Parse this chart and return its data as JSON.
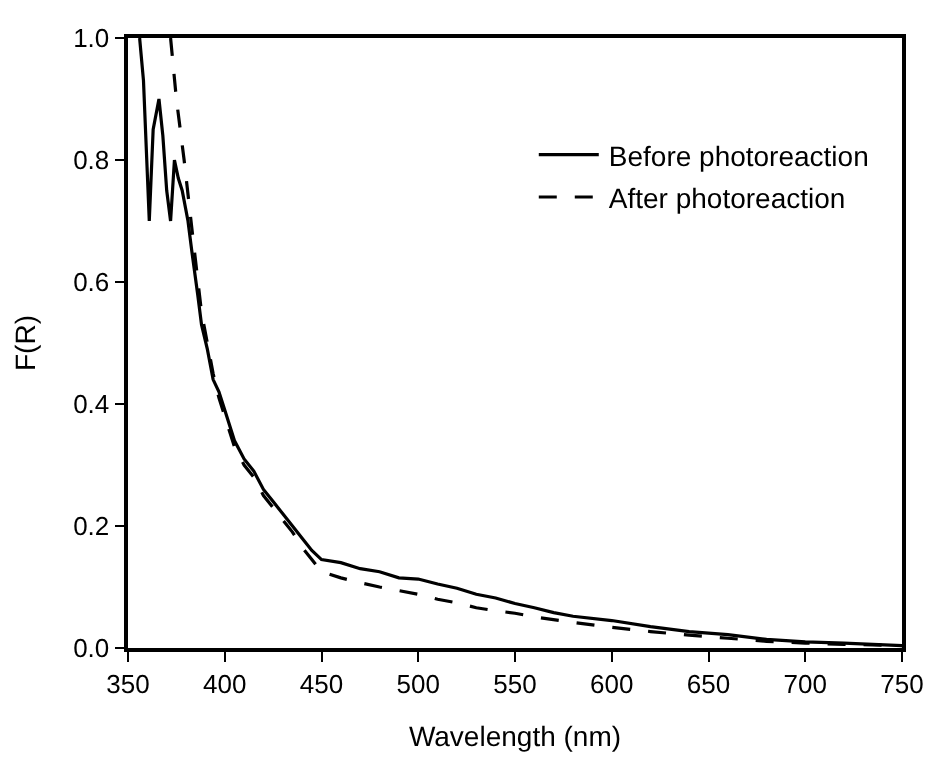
{
  "chart_data": {
    "type": "line",
    "xlabel": "Wavelength (nm)",
    "ylabel": "F(R)",
    "xlim": [
      350,
      750
    ],
    "xticks": [
      350,
      400,
      450,
      500,
      550,
      600,
      650,
      700,
      750
    ],
    "ylim": [
      0.0,
      1.0
    ],
    "yticks": [
      {
        "value": 0,
        "label": "0.0"
      },
      0.2,
      0.4,
      0.6,
      0.8,
      {
        "value": 1,
        "label": "1.0"
      }
    ],
    "legend": "top right",
    "marker": "none",
    "series": [
      {
        "name": "Before photoreaction",
        "color": "#000000",
        "line_style": "solid",
        "x": [
          356,
          358,
          361,
          363,
          366,
          368,
          370,
          372,
          374,
          376,
          378,
          381,
          383,
          386,
          388,
          391,
          394,
          397,
          400,
          405,
          410,
          415,
          420,
          425,
          430,
          435,
          440,
          445,
          450,
          460,
          470,
          480,
          490,
          500,
          510,
          520,
          530,
          540,
          550,
          560,
          570,
          580,
          600,
          620,
          640,
          660,
          680,
          700,
          720,
          750
        ],
        "values": [
          1.0,
          0.93,
          0.7,
          0.85,
          0.9,
          0.84,
          0.75,
          0.7,
          0.8,
          0.77,
          0.75,
          0.7,
          0.65,
          0.58,
          0.53,
          0.49,
          0.44,
          0.42,
          0.39,
          0.34,
          0.31,
          0.29,
          0.26,
          0.24,
          0.22,
          0.2,
          0.18,
          0.16,
          0.145,
          0.14,
          0.13,
          0.125,
          0.115,
          0.113,
          0.105,
          0.098,
          0.088,
          0.082,
          0.073,
          0.066,
          0.058,
          0.052,
          0.045,
          0.035,
          0.027,
          0.022,
          0.014,
          0.01,
          0.008,
          0.004
        ]
      },
      {
        "name": "After photoreaction",
        "color": "#000000",
        "line_style": "dashed",
        "x": [
          372,
          375,
          379,
          384,
          388,
          391,
          394,
          397,
          400,
          405,
          410,
          415,
          420,
          425,
          430,
          435,
          440,
          445,
          450,
          460,
          470,
          480,
          490,
          500,
          510,
          520,
          530,
          540,
          550,
          560,
          580,
          600,
          620,
          640,
          660,
          680,
          700,
          720,
          750
        ],
        "values": [
          1.0,
          0.9,
          0.8,
          0.66,
          0.55,
          0.5,
          0.45,
          0.41,
          0.38,
          0.33,
          0.3,
          0.28,
          0.25,
          0.23,
          0.21,
          0.19,
          0.165,
          0.145,
          0.125,
          0.115,
          0.107,
          0.1,
          0.094,
          0.088,
          0.08,
          0.074,
          0.066,
          0.061,
          0.057,
          0.051,
          0.042,
          0.034,
          0.027,
          0.021,
          0.016,
          0.011,
          0.008,
          0.006,
          0.004
        ]
      }
    ]
  }
}
